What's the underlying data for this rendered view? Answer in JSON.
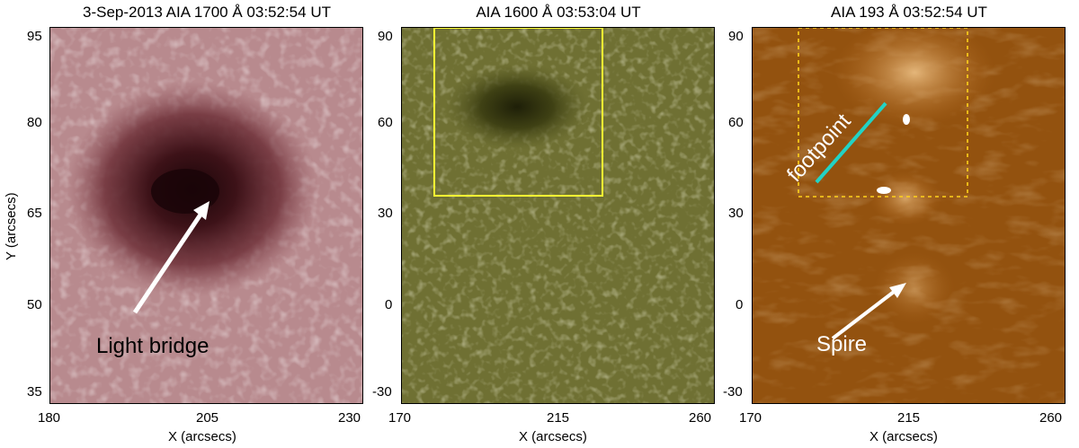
{
  "panels": [
    {
      "title": "3-Sep-2013 AIA 1700 Å 03:52:54 UT",
      "x_ticks": [
        "180",
        "205",
        "230"
      ],
      "y_ticks": [
        "95",
        "80",
        "65",
        "50",
        "35"
      ],
      "xlabel": "X (arcsecs)",
      "ylabel": "Y (arcsecs)",
      "annotation": "Light bridge",
      "colormap": "red-brown"
    },
    {
      "title": "AIA 1600 Å 03:53:04 UT",
      "x_ticks": [
        "170",
        "215",
        "260"
      ],
      "y_ticks": [
        "90",
        "60",
        "30",
        "0",
        "-30"
      ],
      "xlabel": "X (arcsecs)",
      "colormap": "olive"
    },
    {
      "title": "AIA 193 Å 03:52:54 UT",
      "x_ticks": [
        "170",
        "215",
        "260"
      ],
      "y_ticks": [
        "90",
        "60",
        "30",
        "0",
        "-30"
      ],
      "xlabel": "X (arcsecs)",
      "annotation_footpoint": "footpoint",
      "annotation_spire": "Spire",
      "colormap": "orange-brown"
    }
  ],
  "colors": {
    "box_yellow": "#ffff33",
    "footpoint_line": "#22d3c5",
    "arrow": "#ffffff"
  }
}
